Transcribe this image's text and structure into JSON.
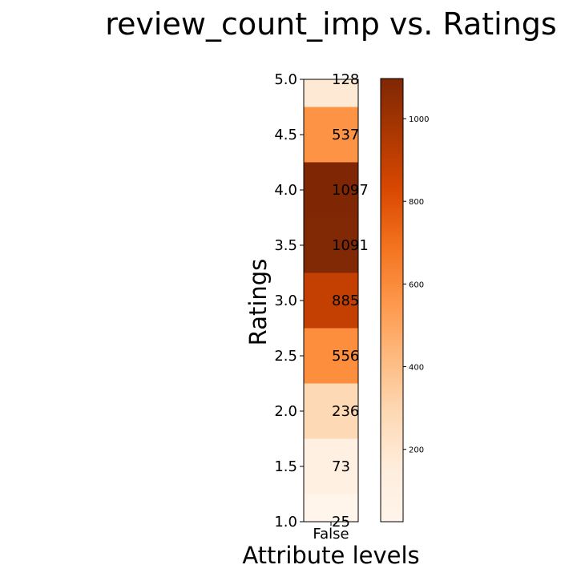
{
  "chart_data": {
    "type": "heatmap",
    "title": "review_count_imp vs. Ratings",
    "xlabel": "Attribute levels",
    "ylabel": "Ratings",
    "x_categories": [
      "False"
    ],
    "y_ticks": [
      "1.0",
      "1.5",
      "2.0",
      "2.5",
      "3.0",
      "3.5",
      "4.0",
      "4.5",
      "5.0"
    ],
    "ylim": [
      1.0,
      5.0
    ],
    "cells": [
      {
        "x": "False",
        "y": 5.0,
        "value": 128,
        "label": "128"
      },
      {
        "x": "False",
        "y": 4.5,
        "value": 537,
        "label": "537"
      },
      {
        "x": "False",
        "y": 4.0,
        "value": 1097,
        "label": "1097"
      },
      {
        "x": "False",
        "y": 3.5,
        "value": 1091,
        "label": "1091"
      },
      {
        "x": "False",
        "y": 3.0,
        "value": 885,
        "label": "885"
      },
      {
        "x": "False",
        "y": 2.5,
        "value": 556,
        "label": "556"
      },
      {
        "x": "False",
        "y": 2.0,
        "value": 236,
        "label": "236"
      },
      {
        "x": "False",
        "y": 1.5,
        "value": 73,
        "label": "73"
      },
      {
        "x": "False",
        "y": 1.0,
        "value": 25,
        "label": "25"
      }
    ],
    "colorscale": "Oranges",
    "colorbar": {
      "range": [
        25,
        1097
      ],
      "ticks": [
        200,
        400,
        600,
        800,
        1000
      ],
      "tick_labels": [
        "200",
        "400",
        "600",
        "800",
        "1000"
      ]
    },
    "grid": false
  }
}
